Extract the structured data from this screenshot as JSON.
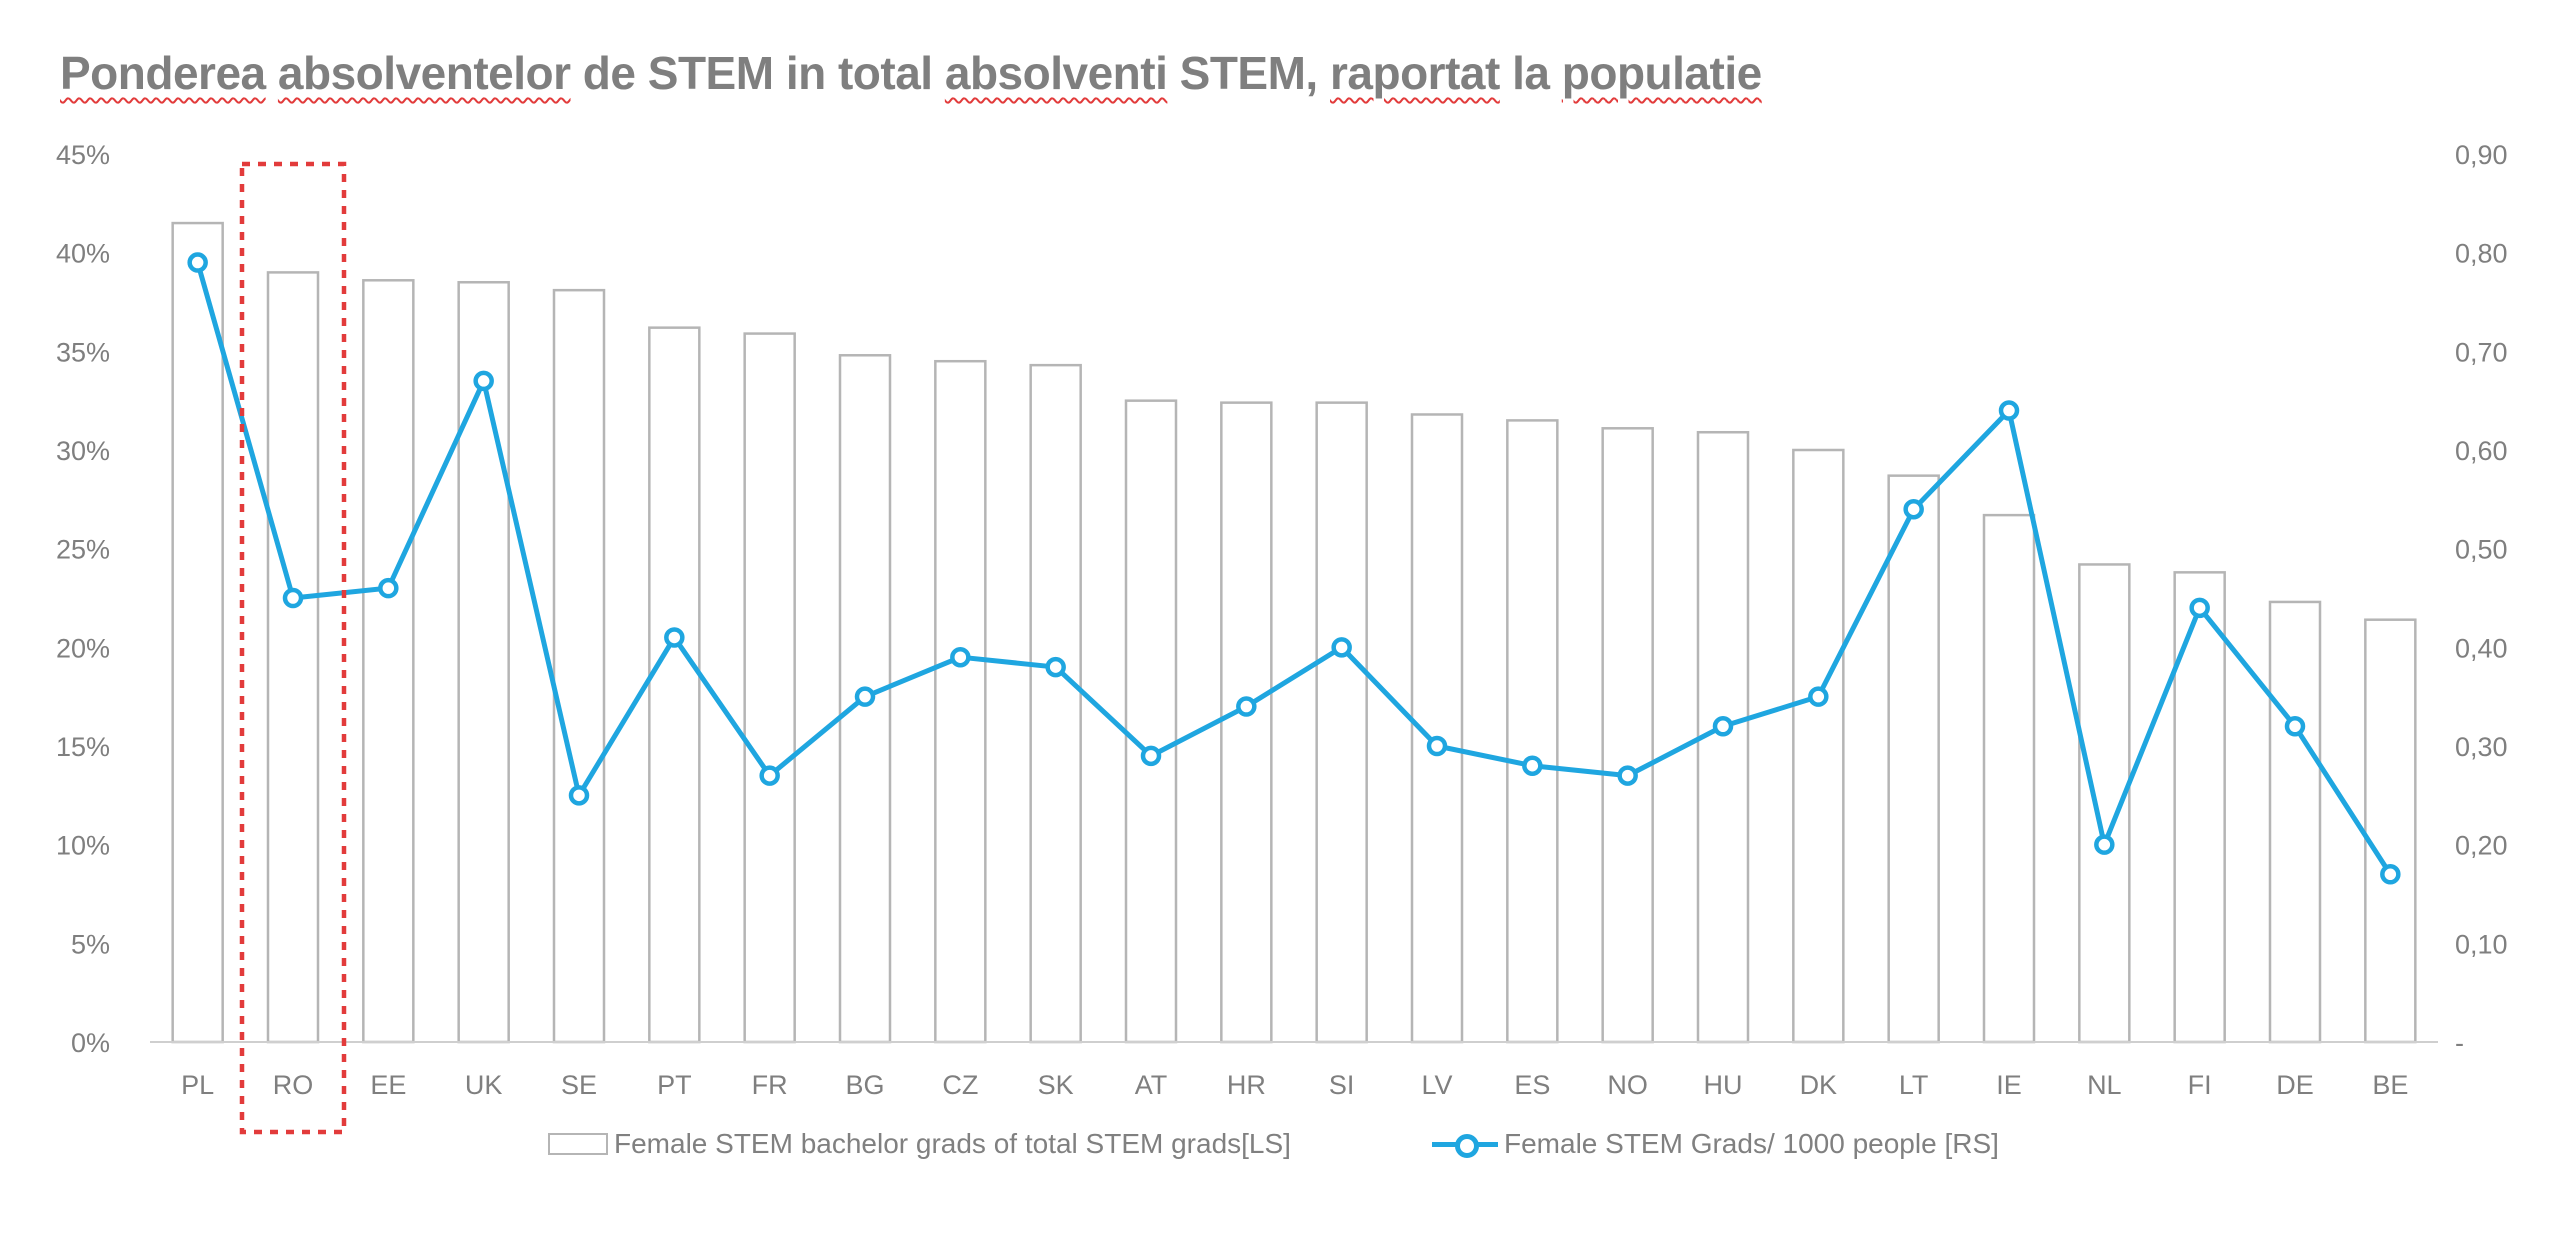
{
  "title": {
    "parts": [
      {
        "text": "Ponderea",
        "squiggle": true
      },
      {
        "text": " ",
        "squiggle": false
      },
      {
        "text": "absolventelor",
        "squiggle": true
      },
      {
        "text": " de STEM in total ",
        "squiggle": false
      },
      {
        "text": "absolventi",
        "squiggle": true
      },
      {
        "text": " STEM, ",
        "squiggle": false
      },
      {
        "text": "raportat",
        "squiggle": true
      },
      {
        "text": " la ",
        "squiggle": false
      },
      {
        "text": "populatie",
        "squiggle": true
      }
    ]
  },
  "colors": {
    "bar_fill": "#ffffff",
    "bar_stroke": "#b5b5b5",
    "line": "#1fa6e0",
    "axis_text": "#7f7f7f",
    "highlight": "#e23b3b",
    "title": "#7f7f7f",
    "spellcheck_underline": "#e23b3b"
  },
  "legend": {
    "bar_label": "Female STEM bachelor grads of total STEM grads[LS]",
    "line_label": "Female STEM Grads/ 1000 people [RS]"
  },
  "highlight_category": "RO",
  "chart_data": {
    "type": "bar+line",
    "title": "Ponderea absolventelor de STEM in total absolventi STEM, raportat la populatie",
    "categories": [
      "PL",
      "RO",
      "EE",
      "UK",
      "SE",
      "PT",
      "FR",
      "BG",
      "CZ",
      "SK",
      "AT",
      "HR",
      "SI",
      "LV",
      "ES",
      "NO",
      "HU",
      "DK",
      "LT",
      "IE",
      "NL",
      "FI",
      "DE",
      "BE"
    ],
    "series": [
      {
        "name": "Female STEM bachelor grads of total STEM grads[LS]",
        "type": "bar",
        "axis": "left",
        "unit": "%",
        "values": [
          41.5,
          39.0,
          38.6,
          38.5,
          38.1,
          36.2,
          35.9,
          34.8,
          34.5,
          34.3,
          32.5,
          32.4,
          32.4,
          31.8,
          31.5,
          31.1,
          30.9,
          30.0,
          28.7,
          26.7,
          24.2,
          23.8,
          22.3,
          21.4
        ]
      },
      {
        "name": "Female STEM Grads/ 1000 people [RS]",
        "type": "line",
        "axis": "right",
        "values": [
          0.79,
          0.45,
          0.46,
          0.67,
          0.25,
          0.41,
          0.27,
          0.35,
          0.39,
          0.38,
          0.29,
          0.34,
          0.4,
          0.3,
          0.28,
          0.27,
          0.32,
          0.35,
          0.54,
          0.64,
          0.2,
          0.44,
          0.32,
          0.17
        ]
      }
    ],
    "left_axis": {
      "min": 0,
      "max": 45,
      "step": 5,
      "tick_labels": [
        "0%",
        "5%",
        "10%",
        "15%",
        "20%",
        "25%",
        "30%",
        "35%",
        "40%",
        "45%"
      ]
    },
    "right_axis": {
      "min": 0,
      "max": 0.9,
      "step": 0.1,
      "tick_labels": [
        "-",
        "0,10",
        "0,20",
        "0,30",
        "0,40",
        "0,50",
        "0,60",
        "0,70",
        "0,80",
        "0,90"
      ]
    },
    "grid": false,
    "legend_position": "bottom"
  }
}
